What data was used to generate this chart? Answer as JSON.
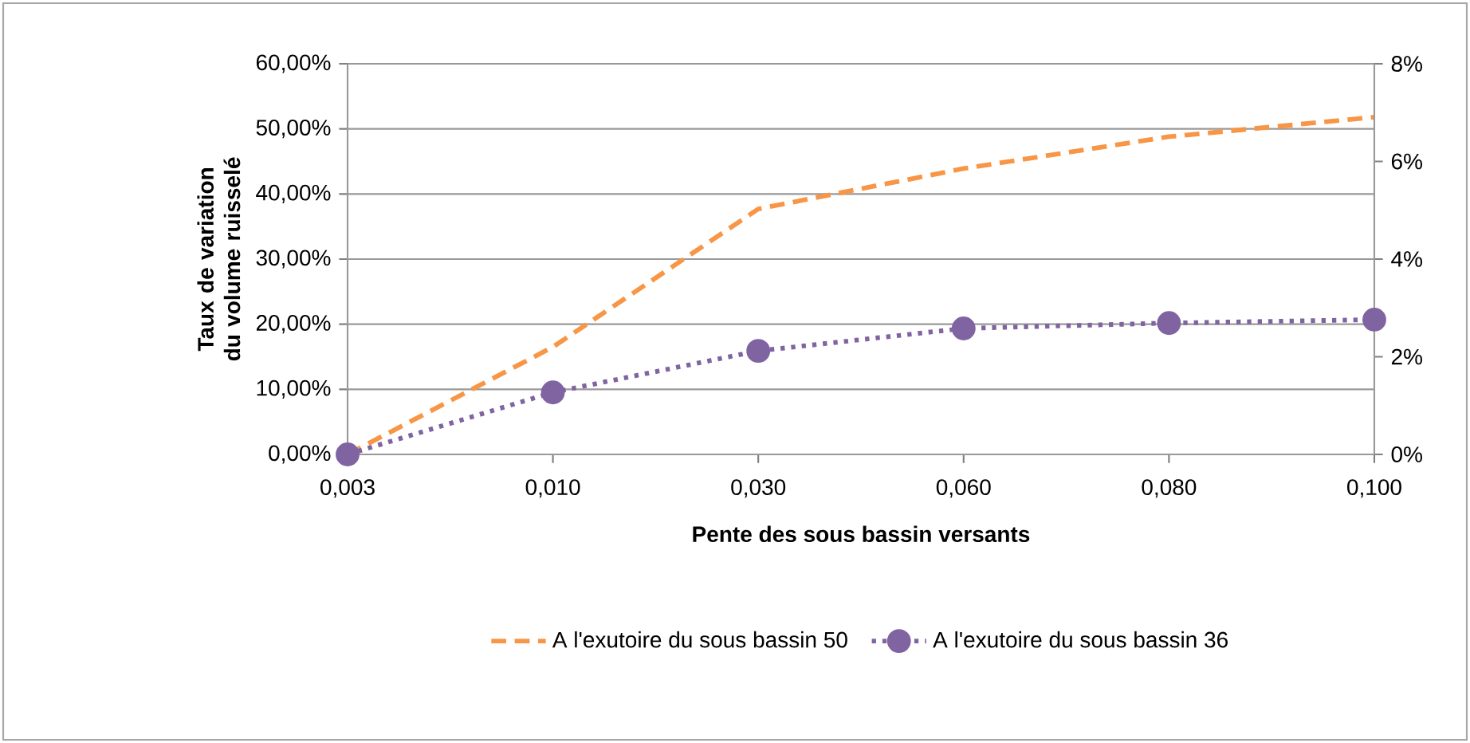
{
  "chart_data": {
    "type": "line",
    "categories": [
      "0,003",
      "0,010",
      "0,030",
      "0,060",
      "0,080",
      "0,100"
    ],
    "xlabel": "Pente des sous bassin versants",
    "ylabel": "Taux de variation du volume ruisselé",
    "series": [
      {
        "name": "A l'exutoire du sous bassin 50",
        "color": "#f79646",
        "values": [
          0,
          16.5,
          37.7,
          43.9,
          48.8,
          51.8
        ],
        "line_style": "dashed",
        "marker": "none"
      },
      {
        "name": "A l'exutoire du sous bassin 36",
        "color": "#8064a2",
        "values": [
          0,
          1.27,
          2.12,
          2.58,
          2.69,
          2.76
        ],
        "line_style": "dotted",
        "marker": "circle",
        "axis": "y2"
      }
    ],
    "ylim": [
      0,
      60
    ],
    "yticks": [
      {
        "value": 0,
        "label": "0,00%"
      },
      {
        "value": 10,
        "label": "10,00%"
      },
      {
        "value": 20,
        "label": "20,00%"
      },
      {
        "value": 30,
        "label": "30,00%"
      },
      {
        "value": 40,
        "label": "40,00%"
      },
      {
        "value": 50,
        "label": "50,00%"
      },
      {
        "value": 60,
        "label": "60,00%"
      }
    ],
    "y2lim": [
      0,
      8
    ],
    "y2ticks": [
      {
        "value": 0,
        "label": "0%"
      },
      {
        "value": 2,
        "label": "2%"
      },
      {
        "value": 4,
        "label": "4%"
      },
      {
        "value": 6,
        "label": "6%"
      },
      {
        "value": 8,
        "label": "8%"
      }
    ],
    "grid": "y",
    "legend": "bottom"
  }
}
